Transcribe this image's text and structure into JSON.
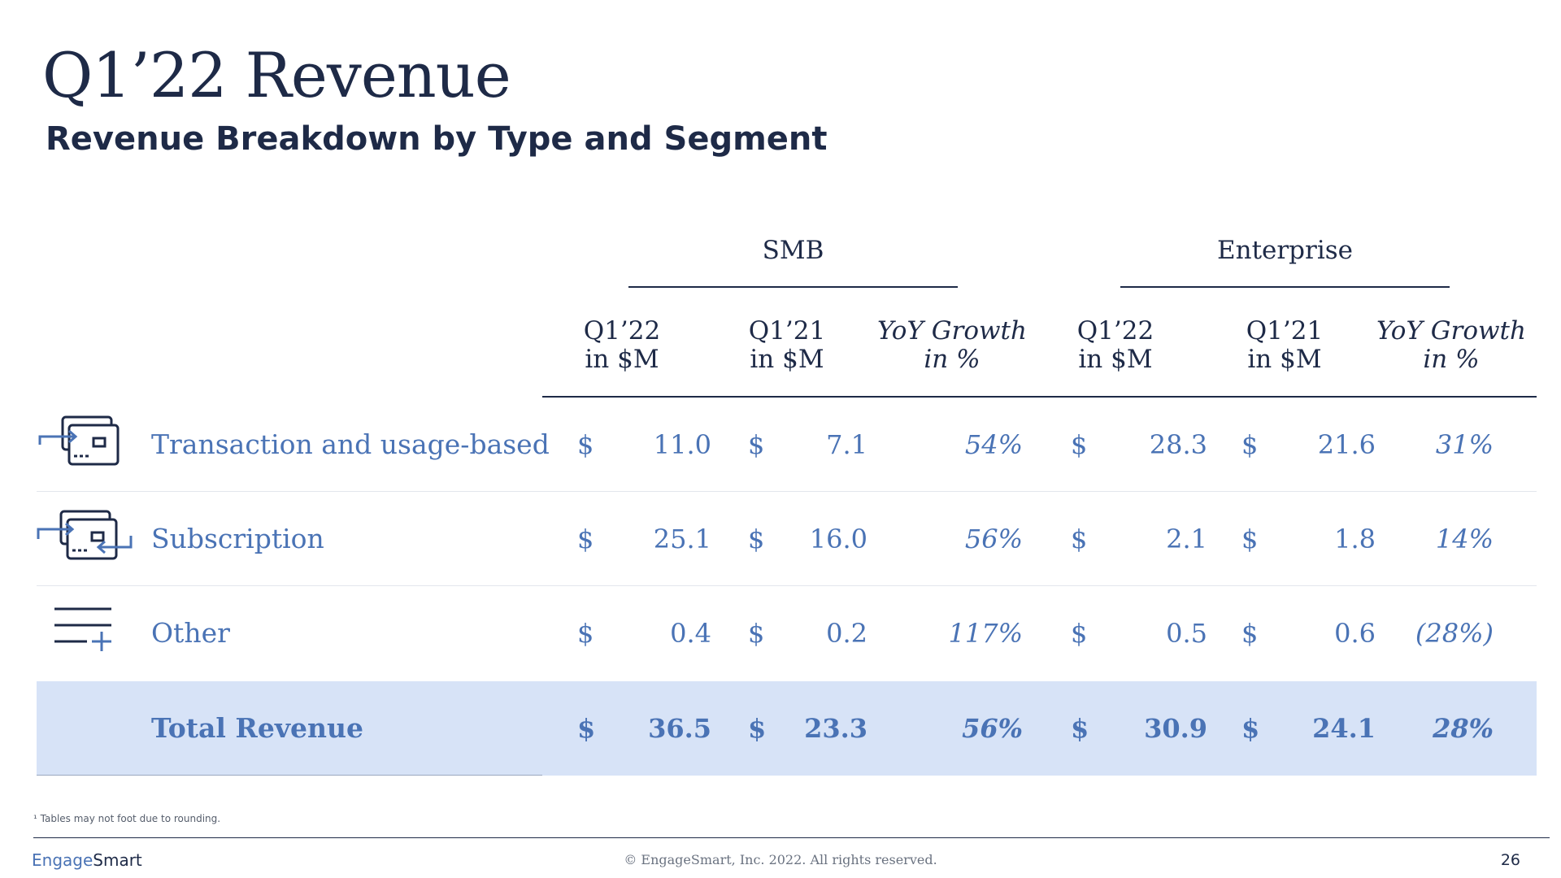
{
  "title": "Q1’22 Revenue",
  "subtitle": "Revenue Breakdown by Type and Segment",
  "groups": {
    "smb": "SMB",
    "enterprise": "Enterprise"
  },
  "columns": [
    {
      "line1": "Q1’22",
      "line2": "in $M"
    },
    {
      "line1": "Q1’21",
      "line2": "in $M"
    },
    {
      "line1": "YoY Growth",
      "line2": "in %"
    },
    {
      "line1": "Q1’22",
      "line2": "in $M"
    },
    {
      "line1": "Q1’21",
      "line2": "in $M"
    },
    {
      "line1": "YoY Growth",
      "line2": "in %"
    }
  ],
  "currency_symbol": "$",
  "rows": [
    {
      "label": "Transaction and usage-based",
      "icon": "card-transfer-icon",
      "values": [
        "11.0",
        "7.1",
        "54%",
        "28.3",
        "21.6",
        "31%"
      ]
    },
    {
      "label": "Subscription",
      "icon": "card-recurring-icon",
      "values": [
        "25.1",
        "16.0",
        "56%",
        "2.1",
        "1.8",
        "14%"
      ]
    },
    {
      "label": "Other",
      "icon": "list-add-icon",
      "values": [
        "0.4",
        "0.2",
        "117%",
        "0.5",
        "0.6",
        "(28%)"
      ]
    },
    {
      "label": "Total Revenue",
      "icon": "",
      "values": [
        "36.5",
        "23.3",
        "56%",
        "30.9",
        "24.1",
        "28%"
      ]
    }
  ],
  "colors": {
    "navy": "#1e2a47",
    "accent_blue": "#4a73b5",
    "total_bg": "#d7e3f7"
  },
  "footnote": "¹ Tables may not foot due to rounding.",
  "footer": {
    "logo_part1": "Engage",
    "logo_part2": "Smart",
    "copyright": "© EngageSmart, Inc. 2022. All rights reserved.",
    "page_number": "26"
  }
}
